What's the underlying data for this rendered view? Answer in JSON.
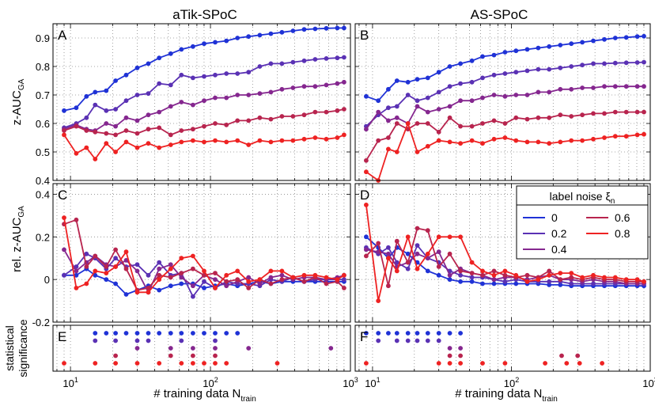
{
  "chart_data": {
    "type": "line",
    "x_scale": "log",
    "x_ticks": [
      10,
      100,
      1000
    ],
    "xlabel_main": "# training data N",
    "xlabel_sub": "train",
    "column_titles": [
      "aTik-SPoC",
      "AS-SPoC"
    ],
    "row_labels": {
      "top_main": "z-AUC",
      "top_sub": "GA",
      "mid_main": "rel. z-AUC",
      "mid_sub": "GA",
      "bot_line1": "statistical",
      "bot_line2": "significance"
    },
    "legend": {
      "title_main": "label noise ξ",
      "title_sub": "n",
      "placement": "panel-D-top-right",
      "entries": [
        {
          "label": "0",
          "color": "#1f32d6"
        },
        {
          "label": "0.2",
          "color": "#5a31b4"
        },
        {
          "label": "0.4",
          "color": "#85278f"
        },
        {
          "label": "0.6",
          "color": "#b8244e"
        },
        {
          "label": "0.8",
          "color": "#ee2222"
        }
      ]
    },
    "grid": true,
    "x": [
      9,
      11,
      13,
      15,
      18,
      21,
      25,
      30,
      36,
      43,
      52,
      62,
      75,
      90,
      108,
      130,
      156,
      187,
      225,
      270,
      324,
      389,
      467,
      560,
      672,
      806,
      900
    ],
    "panels": [
      {
        "label": "A",
        "ylim": [
          0.4,
          0.95
        ],
        "yticks": [
          0.4,
          0.5,
          0.6,
          0.7,
          0.8,
          0.9
        ],
        "series": [
          {
            "values": [
              0.645,
              0.655,
              0.695,
              0.71,
              0.715,
              0.75,
              0.77,
              0.795,
              0.81,
              0.83,
              0.845,
              0.86,
              0.87,
              0.88,
              0.885,
              0.89,
              0.9,
              0.905,
              0.91,
              0.915,
              0.92,
              0.925,
              0.93,
              0.932,
              0.934,
              0.935,
              0.935
            ]
          },
          {
            "values": [
              0.585,
              0.6,
              0.62,
              0.665,
              0.645,
              0.65,
              0.68,
              0.7,
              0.705,
              0.74,
              0.735,
              0.77,
              0.76,
              0.765,
              0.77,
              0.775,
              0.775,
              0.78,
              0.8,
              0.81,
              0.81,
              0.815,
              0.82,
              0.825,
              0.828,
              0.83,
              0.832
            ]
          },
          {
            "values": [
              0.58,
              0.595,
              0.58,
              0.575,
              0.6,
              0.59,
              0.62,
              0.61,
              0.63,
              0.64,
              0.66,
              0.675,
              0.665,
              0.68,
              0.69,
              0.69,
              0.7,
              0.7,
              0.705,
              0.71,
              0.72,
              0.725,
              0.73,
              0.73,
              0.735,
              0.74,
              0.745
            ]
          },
          {
            "values": [
              0.575,
              0.59,
              0.575,
              0.57,
              0.565,
              0.56,
              0.575,
              0.565,
              0.58,
              0.585,
              0.56,
              0.575,
              0.58,
              0.59,
              0.6,
              0.595,
              0.61,
              0.61,
              0.62,
              0.615,
              0.625,
              0.625,
              0.63,
              0.64,
              0.64,
              0.645,
              0.65
            ]
          },
          {
            "values": [
              0.56,
              0.495,
              0.515,
              0.475,
              0.53,
              0.5,
              0.535,
              0.515,
              0.53,
              0.515,
              0.525,
              0.535,
              0.54,
              0.535,
              0.54,
              0.535,
              0.54,
              0.525,
              0.54,
              0.535,
              0.54,
              0.54,
              0.545,
              0.55,
              0.545,
              0.55,
              0.56
            ]
          }
        ]
      },
      {
        "label": "B",
        "ylim": [
          0.4,
          0.95
        ],
        "yticks": [
          0.4,
          0.5,
          0.6,
          0.7,
          0.8,
          0.9
        ],
        "series": [
          {
            "values": [
              0.695,
              0.68,
              0.72,
              0.75,
              0.745,
              0.755,
              0.76,
              0.78,
              0.8,
              0.81,
              0.82,
              0.835,
              0.84,
              0.85,
              0.855,
              0.86,
              0.865,
              0.87,
              0.875,
              0.88,
              0.885,
              0.89,
              0.895,
              0.9,
              0.902,
              0.905,
              0.906
            ]
          },
          {
            "values": [
              0.59,
              0.63,
              0.655,
              0.66,
              0.7,
              0.68,
              0.69,
              0.71,
              0.73,
              0.74,
              0.745,
              0.76,
              0.77,
              0.775,
              0.78,
              0.785,
              0.79,
              0.79,
              0.795,
              0.8,
              0.805,
              0.81,
              0.81,
              0.812,
              0.813,
              0.814,
              0.815
            ]
          },
          {
            "values": [
              0.58,
              0.64,
              0.61,
              0.62,
              0.6,
              0.66,
              0.64,
              0.65,
              0.66,
              0.68,
              0.68,
              0.69,
              0.7,
              0.695,
              0.7,
              0.7,
              0.71,
              0.71,
              0.72,
              0.72,
              0.725,
              0.725,
              0.73,
              0.73,
              0.73,
              0.73,
              0.73
            ]
          },
          {
            "values": [
              0.47,
              0.54,
              0.55,
              0.6,
              0.58,
              0.6,
              0.6,
              0.57,
              0.62,
              0.59,
              0.59,
              0.6,
              0.61,
              0.6,
              0.62,
              0.615,
              0.62,
              0.62,
              0.63,
              0.625,
              0.63,
              0.635,
              0.635,
              0.64,
              0.64,
              0.64,
              0.64
            ]
          },
          {
            "values": [
              0.43,
              0.4,
              0.51,
              0.5,
              0.6,
              0.5,
              0.52,
              0.54,
              0.535,
              0.53,
              0.54,
              0.53,
              0.545,
              0.55,
              0.54,
              0.535,
              0.535,
              0.53,
              0.535,
              0.54,
              0.54,
              0.545,
              0.55,
              0.555,
              0.555,
              0.56,
              0.562
            ]
          }
        ]
      },
      {
        "label": "C",
        "ylim": [
          -0.2,
          0.45
        ],
        "yticks": [
          -0.2,
          0,
          0.2,
          0.4
        ],
        "series": [
          {
            "values": [
              0.02,
              0.02,
              0.05,
              0.02,
              0.0,
              -0.02,
              -0.07,
              -0.05,
              -0.03,
              -0.05,
              -0.03,
              -0.02,
              -0.02,
              -0.04,
              -0.03,
              -0.02,
              -0.03,
              -0.02,
              -0.01,
              -0.02,
              -0.01,
              -0.01,
              -0.01,
              -0.01,
              -0.01,
              -0.01,
              -0.01
            ]
          },
          {
            "values": [
              0.02,
              0.06,
              0.12,
              0.1,
              0.05,
              0.1,
              0.06,
              0.07,
              0.02,
              0.08,
              0.02,
              0.03,
              -0.08,
              -0.01,
              -0.04,
              -0.01,
              -0.02,
              -0.02,
              -0.03,
              0.0,
              -0.01,
              0.01,
              -0.01,
              0.0,
              0.0,
              0.0,
              0.0
            ]
          },
          {
            "values": [
              0.14,
              0.04,
              0.08,
              0.11,
              0.07,
              0.06,
              0.09,
              0.04,
              -0.06,
              0.05,
              0.07,
              0.01,
              -0.03,
              0.02,
              0.0,
              -0.03,
              -0.01,
              0.01,
              -0.02,
              0.01,
              0.02,
              0.0,
              0.01,
              0.01,
              0.0,
              0.01,
              0.02
            ]
          },
          {
            "values": [
              0.26,
              0.28,
              0.06,
              0.11,
              0.06,
              0.14,
              0.05,
              -0.05,
              -0.04,
              0.02,
              0.01,
              0.03,
              0.05,
              0.02,
              0.03,
              -0.01,
              0.0,
              -0.04,
              0.0,
              -0.02,
              0.0,
              0.01,
              -0.01,
              0.01,
              -0.02,
              -0.01,
              -0.04
            ]
          },
          {
            "values": [
              0.29,
              -0.04,
              -0.02,
              0.04,
              0.03,
              0.06,
              0.13,
              -0.06,
              -0.06,
              0.0,
              0.05,
              0.1,
              0.11,
              0.04,
              -0.04,
              0.02,
              0.04,
              -0.01,
              0.0,
              0.04,
              0.04,
              0.01,
              0.02,
              0.02,
              0.01,
              0.0,
              0.02
            ]
          }
        ]
      },
      {
        "label": "D",
        "ylim": [
          -0.2,
          0.45
        ],
        "yticks": [
          -0.2,
          0,
          0.2,
          0.4
        ],
        "series": [
          {
            "values": [
              0.2,
              0.15,
              0.1,
              0.15,
              0.12,
              0.08,
              0.04,
              0.02,
              0.0,
              -0.01,
              -0.01,
              -0.02,
              -0.02,
              -0.02,
              -0.02,
              -0.02,
              -0.02,
              -0.025,
              -0.025,
              -0.03,
              -0.03,
              -0.03,
              -0.03,
              -0.03,
              -0.03,
              -0.03,
              -0.03
            ]
          },
          {
            "values": [
              0.15,
              0.12,
              0.15,
              0.08,
              0.05,
              0.16,
              0.1,
              0.08,
              0.04,
              0.02,
              0.01,
              0.01,
              0.0,
              -0.01,
              0.0,
              -0.01,
              -0.01,
              -0.01,
              -0.01,
              -0.02,
              -0.02,
              -0.02,
              -0.02,
              -0.02,
              -0.02,
              -0.02,
              -0.02
            ]
          },
          {
            "values": [
              0.14,
              0.13,
              0.12,
              0.06,
              0.08,
              0.12,
              0.1,
              0.13,
              0.02,
              0.05,
              0.03,
              0.02,
              0.0,
              0.01,
              0.01,
              0.0,
              0.01,
              0.02,
              0.0,
              0.0,
              -0.01,
              0.0,
              -0.01,
              -0.01,
              -0.02,
              -0.02,
              -0.02
            ]
          },
          {
            "values": [
              0.11,
              0.17,
              -0.03,
              0.18,
              0.08,
              0.24,
              0.23,
              0.06,
              0.12,
              0.04,
              0.03,
              0.02,
              0.04,
              0.02,
              0.01,
              0.02,
              0.01,
              0.04,
              0.0,
              0.01,
              0.0,
              0.01,
              0.0,
              0.0,
              -0.01,
              -0.01,
              -0.01
            ]
          },
          {
            "values": [
              0.35,
              -0.1,
              0.1,
              0.04,
              0.2,
              0.05,
              0.12,
              0.2,
              0.2,
              0.2,
              0.08,
              0.04,
              0.02,
              0.04,
              0.02,
              -0.01,
              0.0,
              0.02,
              0.03,
              0.03,
              0.01,
              0.02,
              0.01,
              0.01,
              0.0,
              0.0,
              -0.01
            ]
          }
        ]
      }
    ],
    "significance": [
      {
        "label": "E",
        "rows": [
          {
            "series": 0,
            "x": [
              15,
              18,
              21,
              25,
              30,
              36,
              43,
              52,
              62,
              75,
              90,
              108,
              130,
              156
            ]
          },
          {
            "series": 1,
            "x": [
              15,
              21,
              30,
              36,
              62,
              108
            ]
          },
          {
            "series": 2,
            "x": [
              30,
              52,
              75,
              108,
              187,
              725
            ]
          },
          {
            "series": 3,
            "x": [
              21,
              52,
              75,
              108
            ]
          },
          {
            "series": 4,
            "x": [
              9,
              15,
              21,
              30,
              43,
              62,
              75,
              90,
              108,
              130,
              300
            ]
          }
        ]
      },
      {
        "label": "F",
        "rows": [
          {
            "series": 0,
            "x": [
              9,
              11,
              13,
              15,
              18,
              21,
              25,
              30,
              36,
              43
            ]
          },
          {
            "series": 1,
            "x": [
              11,
              15,
              18,
              21,
              25,
              30
            ]
          },
          {
            "series": 2,
            "x": [
              36,
              43
            ]
          },
          {
            "series": 3,
            "x": [
              36,
              43,
              230,
              300
            ]
          },
          {
            "series": 4,
            "x": [
              9,
              30,
              36,
              43,
              62,
              90,
              175,
              250,
              310,
              450
            ]
          }
        ]
      }
    ]
  }
}
